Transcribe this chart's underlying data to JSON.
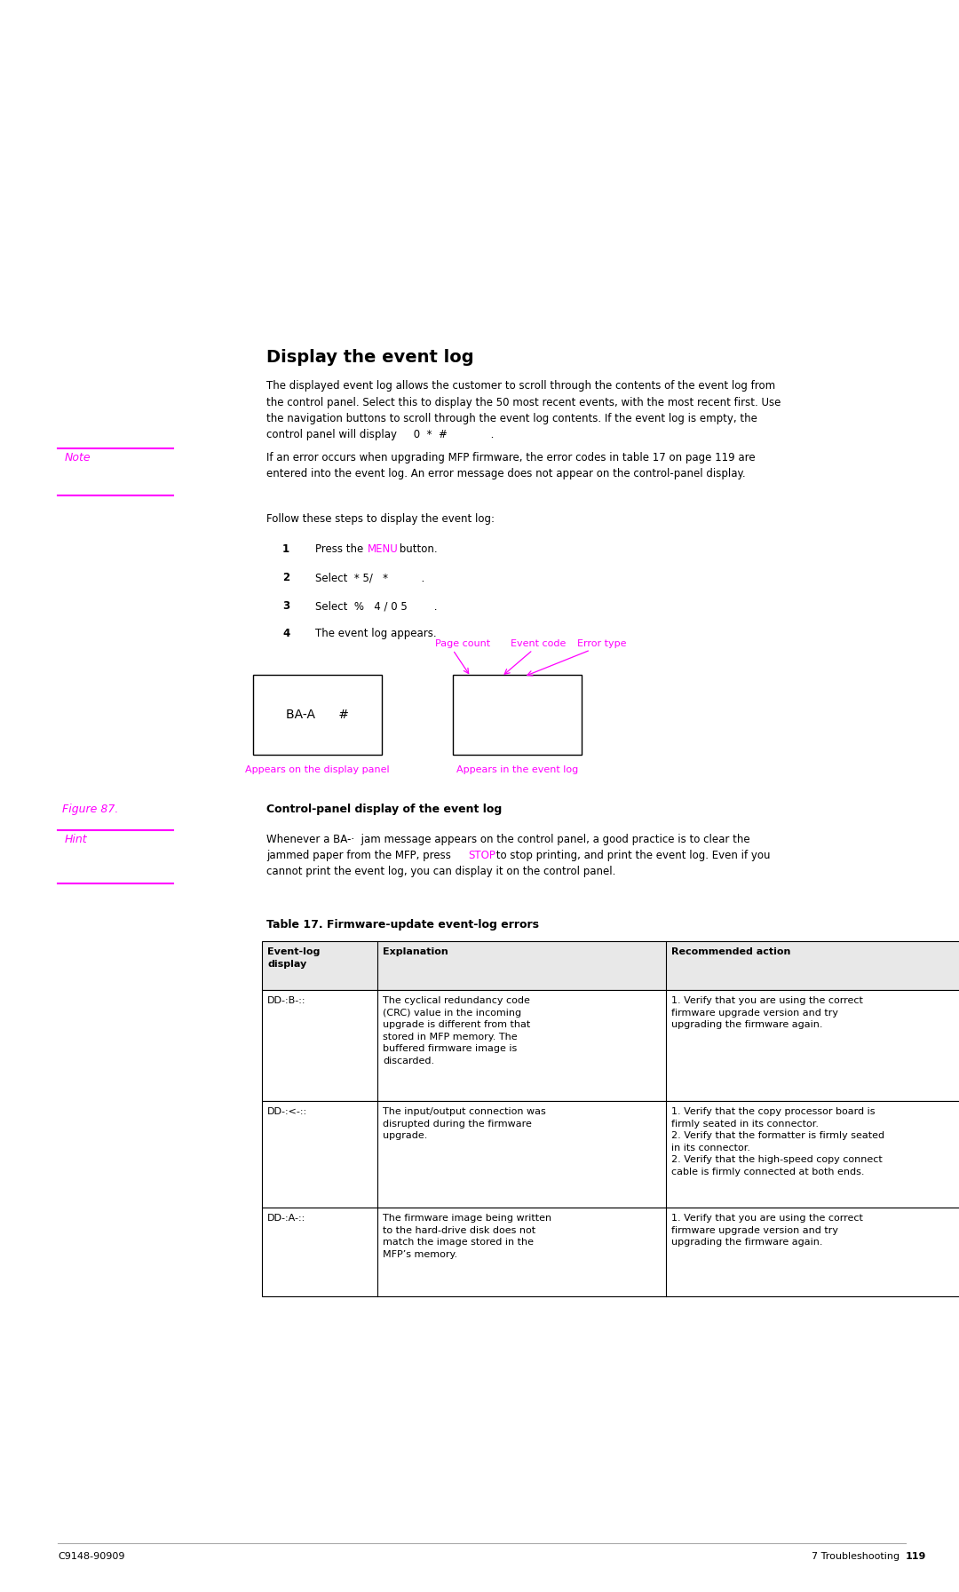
{
  "bg_color": "#ffffff",
  "title": "Display the event log",
  "body_text": "The displayed event log allows the customer to scroll through the contents of the event log from\nthe control panel. Select this to display the 50 most recent events, with the most recent first. Use\nthe navigation buttons to scroll through the event log contents. If the event log is empty, the\ncontrol panel will display     0  *  #             .",
  "note_label": "Note",
  "note_text": "If an error occurs when upgrading MFP firmware, the error codes in table 17 on page 119 are\nentered into the event log. An error message does not appear on the control-panel display.",
  "follow_text": "Follow these steps to display the event log:",
  "steps": [
    {
      "num": "1",
      "pre": "Press the ",
      "menu": "MENU",
      "post": " button."
    },
    {
      "num": "2",
      "pre": "Select  * 5/   *          ."
    },
    {
      "num": "3",
      "pre": "Select  %   4 / 0 5        ."
    },
    {
      "num": "4",
      "pre": "The event log appears."
    }
  ],
  "panel_label_left": "BA-A      #",
  "panel_annot_left": "Appears on the display panel",
  "panel_annot_right": "Appears in the event log",
  "annot_page_count": "Page count",
  "annot_event_code": "Event code",
  "annot_error_type": "Error type",
  "figure_label": "Figure 87.",
  "figure_caption": "Control-panel display of the event log",
  "hint_label": "Hint",
  "hint_line1": "Whenever a BA-·  jam message appears on the control panel, a good practice is to clear the",
  "hint_line2_pre": "jammed paper from the MFP, press ",
  "hint_line2_stop": "STOP",
  "hint_line2_post": " to stop printing, and print the event log. Even if you",
  "hint_line3": "cannot print the event log, you can display it on the control panel.",
  "table_title": "Table 17. Firmware-update event-log errors",
  "table_headers": [
    "Event-log\ndisplay",
    "Explanation",
    "Recommended action"
  ],
  "table_rows": [
    [
      "DD-:B-::",
      "The cyclical redundancy code\n(CRC) value in the incoming\nupgrade is different from that\nstored in MFP memory. The\nbuffered firmware image is\ndiscarded.",
      "1. Verify that you are using the correct\nfirmware upgrade version and try\nupgrading the firmware again."
    ],
    [
      "DD-:<-::",
      "The input/output connection was\ndisrupted during the firmware\nupgrade.",
      "1. Verify that the copy processor board is\nfirmly seated in its connector.\n2. Verify that the formatter is firmly seated\nin its connector.\n2. Verify that the high-speed copy connect\ncable is firmly connected at both ends."
    ],
    [
      "DD-:A-::",
      "The firmware image being written\nto the hard-drive disk does not\nmatch the image stored in the\nMFP’s memory.",
      "1. Verify that you are using the correct\nfirmware upgrade version and try\nupgrading the firmware again."
    ]
  ],
  "footer_left": "C9148-90909",
  "footer_right": "7 Troubleshooting  119",
  "magenta": "#ff00ff",
  "black": "#000000"
}
